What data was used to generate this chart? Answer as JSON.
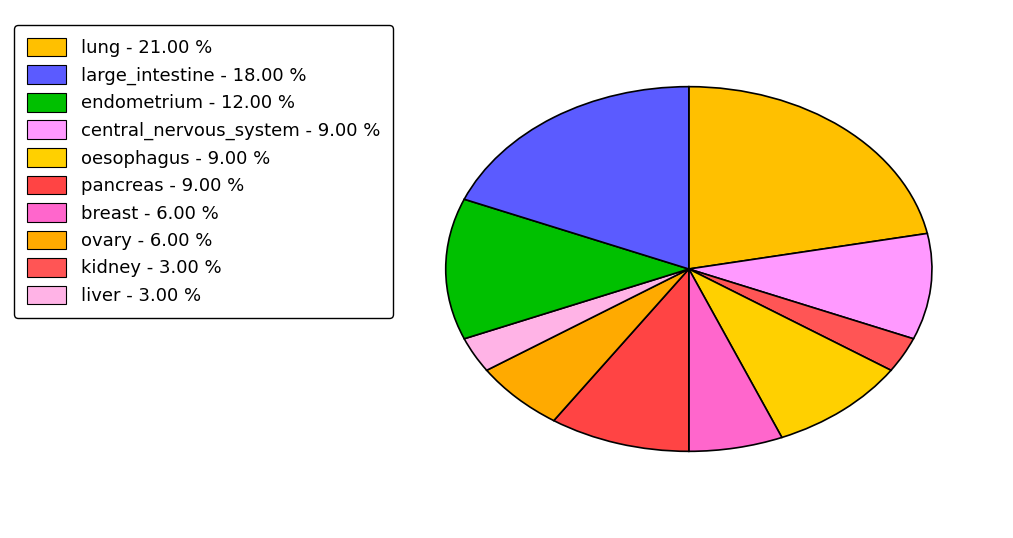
{
  "labels": [
    "lung",
    "central_nervous_system",
    "kidney",
    "oesophagus",
    "breast",
    "pancreas",
    "ovary",
    "liver",
    "endometrium",
    "large_intestine"
  ],
  "values": [
    21.0,
    9.0,
    3.0,
    9.0,
    6.0,
    9.0,
    6.0,
    3.0,
    12.0,
    18.0
  ],
  "colors": [
    "#FFC000",
    "#FF99FF",
    "#FF5555",
    "#FFD000",
    "#FF66CC",
    "#FF4444",
    "#FFAA00",
    "#FFB3E6",
    "#00C000",
    "#5B5BFF"
  ],
  "legend_labels": [
    "lung - 21.00 %",
    "large_intestine - 18.00 %",
    "endometrium - 12.00 %",
    "central_nervous_system - 9.00 %",
    "oesophagus - 9.00 %",
    "pancreas - 9.00 %",
    "breast - 6.00 %",
    "ovary - 6.00 %",
    "kidney - 3.00 %",
    "liver - 3.00 %"
  ],
  "legend_colors": [
    "#FFC000",
    "#5B5BFF",
    "#00C000",
    "#FF99FF",
    "#FFD000",
    "#FF4444",
    "#FF66CC",
    "#FFAA00",
    "#FF5555",
    "#FFB3E6"
  ],
  "background_color": "#ffffff",
  "legend_fontsize": 13,
  "pie_startangle": 90,
  "pie_counterclock": false,
  "pie_aspect": 0.75
}
